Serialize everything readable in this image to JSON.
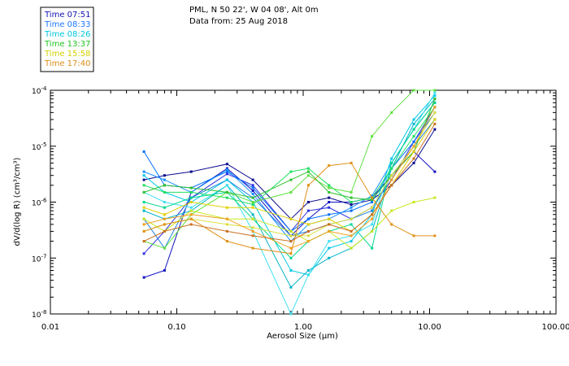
{
  "chart_data": {
    "type": "line",
    "title_line1": "PML, N 50 22', W 04 08', Alt 0m",
    "title_line2": "Data from: 25 Aug 2018",
    "xlabel": "Aerosol Size (μm)",
    "ylabel": "dV/d(log R) (cm³/cm³)",
    "xscale": "log",
    "yscale": "log",
    "xlim": [
      0.01,
      100
    ],
    "ylim": [
      1e-08,
      0.0001
    ],
    "grid": false,
    "x_ticks": [
      {
        "value": 0.01,
        "label": "0.01"
      },
      {
        "value": 0.1,
        "label": "0.10"
      },
      {
        "value": 1,
        "label": "1.00"
      },
      {
        "value": 10,
        "label": "10.00"
      },
      {
        "value": 100,
        "label": "100.00"
      }
    ],
    "y_ticks": [
      {
        "value": 1e-08,
        "mantissa": "10",
        "exp": "-8"
      },
      {
        "value": 1e-07,
        "mantissa": "10",
        "exp": "-7"
      },
      {
        "value": 1e-06,
        "mantissa": "10",
        "exp": "-6"
      },
      {
        "value": 1e-05,
        "mantissa": "10",
        "exp": "-5"
      },
      {
        "value": 0.0001,
        "mantissa": "10",
        "exp": "-4"
      }
    ],
    "legend_position": "top-left",
    "x": [
      0.055,
      0.08,
      0.13,
      0.25,
      0.4,
      0.8,
      1.1,
      1.6,
      2.4,
      3.5,
      5.0,
      7.5,
      11.0
    ],
    "series": [
      {
        "name": "Time 07:51",
        "color": "#1010c0",
        "values": [
          4.5e-08,
          6e-08,
          1.5e-06,
          4e-06,
          1.6e-06,
          2.5e-07,
          5e-07,
          1e-06,
          1e-06,
          1.2e-06,
          3e-06,
          8e-06,
          3.5e-06
        ]
      },
      {
        "name": "Time 07:51",
        "color": "#0a0a90",
        "values": [
          2.5e-06,
          3e-06,
          3.5e-06,
          4.8e-06,
          2.5e-06,
          5e-07,
          1e-06,
          1.2e-06,
          9e-07,
          1.1e-06,
          2e-06,
          5e-06,
          2e-05
        ]
      },
      {
        "name": "Time 07:51",
        "color": "#3030e0",
        "values": [
          1.2e-07,
          3e-07,
          1.2e-06,
          3.2e-06,
          2e-06,
          3e-07,
          7e-07,
          8e-07,
          5e-07,
          8e-07,
          2.5e-06,
          1.2e-05,
          5e-05
        ]
      },
      {
        "name": "Time 08:33",
        "color": "#0070ff",
        "values": [
          8e-06,
          2e-06,
          1.8e-06,
          3.5e-06,
          1.8e-06,
          3e-07,
          5e-07,
          6e-07,
          7e-07,
          1e-06,
          4e-06,
          1.2e-05,
          4e-05
        ]
      },
      {
        "name": "Time 08:33",
        "color": "#1a90ff",
        "values": [
          3.5e-06,
          2.5e-06,
          1.5e-06,
          3.8e-06,
          1.4e-06,
          2e-07,
          4e-07,
          5e-07,
          8e-07,
          1.3e-06,
          5e-06,
          2e-05,
          6e-05
        ]
      },
      {
        "name": "Time 08:33",
        "color": "#2080e0",
        "values": [
          5e-07,
          1.5e-07,
          1.2e-06,
          2.5e-06,
          1.2e-06,
          2.5e-07,
          3e-07,
          4e-07,
          5e-07,
          7e-07,
          3e-06,
          1e-05,
          3e-05
        ]
      },
      {
        "name": "Time 08:26",
        "color": "#00c8e8",
        "values": [
          3e-06,
          1.5e-06,
          1e-06,
          2.5e-06,
          1e-06,
          6e-08,
          5e-08,
          1.5e-07,
          2e-07,
          6e-07,
          6e-06,
          3e-05,
          8e-05
        ]
      },
      {
        "name": "Time 08:26",
        "color": "#00b4c8",
        "values": [
          7e-07,
          5e-07,
          7e-07,
          2e-06,
          6e-07,
          3e-08,
          6e-08,
          1e-07,
          1.5e-07,
          3e-07,
          4e-06,
          2.5e-05,
          7e-05
        ]
      },
      {
        "name": "Time 08:26",
        "color": "#40e0f0",
        "values": [
          1.5e-06,
          1e-06,
          8e-07,
          2e-06,
          3e-07,
          1e-08,
          5e-08,
          2e-07,
          2.5e-07,
          4e-07,
          5e-06,
          2e-05,
          9e-05
        ]
      },
      {
        "name": "Time 13:37",
        "color": "#00d890",
        "values": [
          1e-06,
          8e-07,
          1.2e-06,
          1.5e-06,
          5e-07,
          1e-07,
          2e-07,
          3e-07,
          4e-07,
          1.5e-07,
          5e-06,
          2e-05,
          6e-05
        ]
      },
      {
        "name": "Time 13:37",
        "color": "#20e060",
        "values": [
          2e-06,
          1.5e-06,
          1.5e-06,
          1.2e-06,
          9e-07,
          3.5e-06,
          4e-06,
          2e-06,
          1e-06,
          1.2e-06,
          4e-06,
          1.5e-05,
          5e-05
        ]
      },
      {
        "name": "Time 13:37",
        "color": "#60e040",
        "values": [
          2e-07,
          1.5e-07,
          6e-07,
          1.5e-06,
          1e-06,
          1.5e-06,
          3e-06,
          1.8e-06,
          1.5e-06,
          1.5e-05,
          4e-05,
          0.0001,
          0.0001
        ]
      },
      {
        "name": "Time 13:37",
        "color": "#30c030",
        "values": [
          1.5e-06,
          2e-06,
          1.8e-06,
          1.5e-06,
          1.2e-06,
          2.5e-06,
          3.5e-06,
          1.5e-06,
          1.2e-06,
          1.1e-06,
          3e-06,
          8e-06,
          7e-05
        ]
      },
      {
        "name": "Time 15:58",
        "color": "#c8e820",
        "values": [
          5e-07,
          3e-07,
          7e-07,
          5e-07,
          5e-07,
          3e-07,
          2e-07,
          3e-07,
          1.5e-07,
          3e-07,
          7e-07,
          1e-06,
          1.2e-06
        ]
      },
      {
        "name": "Time 15:58",
        "color": "#e0d000",
        "values": [
          8e-07,
          6e-07,
          1e-06,
          8e-07,
          8e-07,
          5e-07,
          4e-07,
          5e-07,
          3e-07,
          6e-07,
          2e-06,
          8e-06,
          3e-05
        ]
      },
      {
        "name": "Time 15:58",
        "color": "#d8e040",
        "values": [
          3e-07,
          4e-07,
          5e-07,
          4e-07,
          3.5e-07,
          2.5e-07,
          2.5e-07,
          4e-07,
          5e-07,
          8e-07,
          3e-06,
          1e-05,
          4e-05
        ]
      },
      {
        "name": "Time 17:40",
        "color": "#e09018",
        "values": [
          3e-07,
          4e-07,
          5e-07,
          2e-07,
          1.5e-07,
          1.2e-07,
          2e-06,
          4.5e-06,
          5e-06,
          1.2e-06,
          4e-07,
          2.5e-07,
          2.5e-07
        ]
      },
      {
        "name": "Time 17:40",
        "color": "#f0a020",
        "values": [
          4e-07,
          5e-07,
          6e-07,
          5e-07,
          3e-07,
          1.5e-07,
          2e-07,
          3e-07,
          2.5e-07,
          5e-07,
          2.5e-06,
          1e-05,
          5e-05
        ]
      },
      {
        "name": "Time 17:40",
        "color": "#c87020",
        "values": [
          2e-07,
          3e-07,
          4e-07,
          3e-07,
          2.5e-07,
          2e-07,
          3e-07,
          4e-07,
          3e-07,
          6e-07,
          2e-06,
          6e-06,
          2.5e-05
        ]
      }
    ],
    "legend": [
      {
        "name": "Time 07:51",
        "color": "#1414b4"
      },
      {
        "name": "Time 08:33",
        "color": "#1e78ff"
      },
      {
        "name": "Time 08:26",
        "color": "#00c8dc"
      },
      {
        "name": "Time 13:37",
        "color": "#22c422"
      },
      {
        "name": "Time 15:58",
        "color": "#d2d200"
      },
      {
        "name": "Time 17:40",
        "color": "#e08c14"
      }
    ]
  }
}
